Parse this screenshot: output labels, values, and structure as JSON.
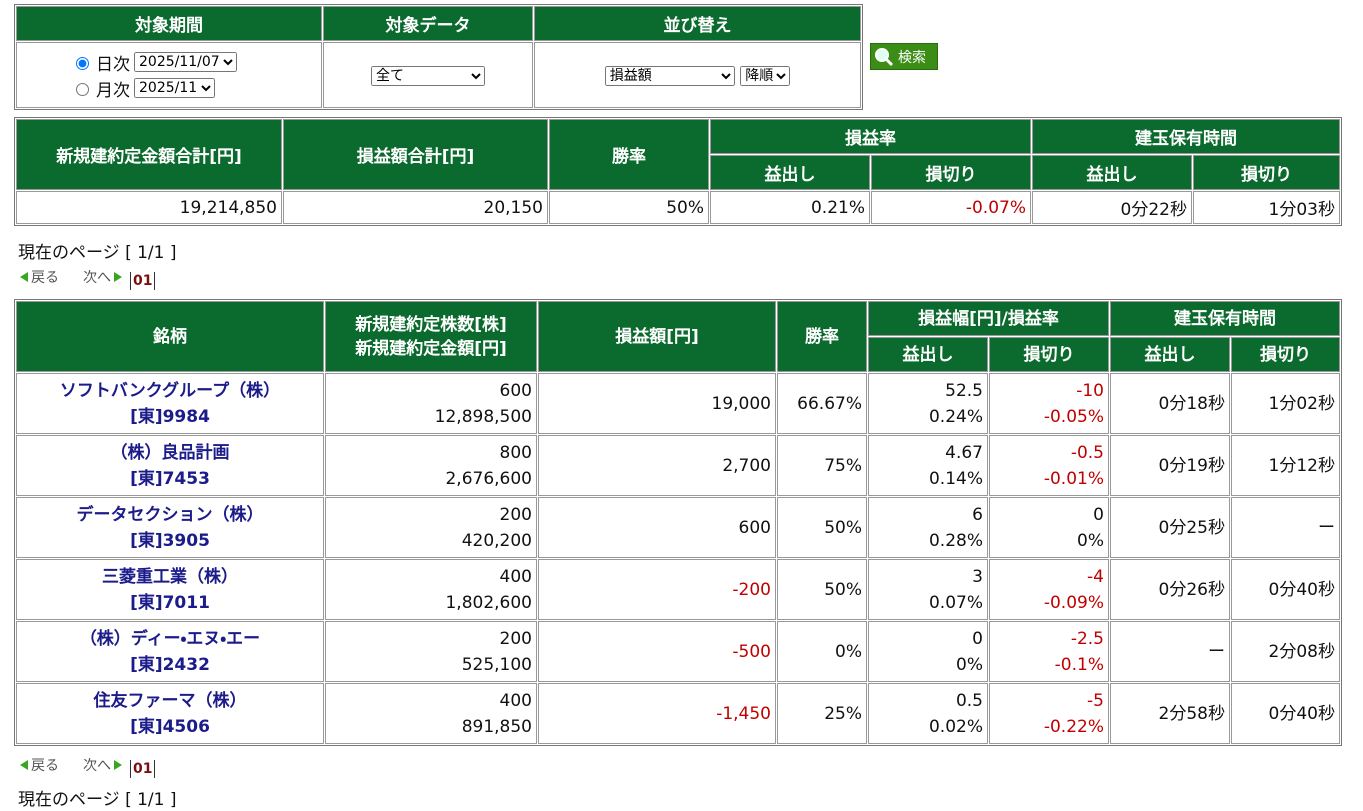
{
  "filter": {
    "headers": [
      "対象期間",
      "対象データ",
      "並び替え"
    ],
    "period_options": [
      {
        "label": "日次",
        "value": "2025/11/07",
        "checked": true
      },
      {
        "label": "月次",
        "value": "2025/11",
        "checked": false
      }
    ],
    "data_select": "全て",
    "sort_select": "損益額",
    "order_select": "降順",
    "search_button": "検索"
  },
  "summary": {
    "headers": [
      "新規建約定金額合計[円]",
      "損益額合計[円]",
      "勝率",
      "損益率",
      "建玉保有時間"
    ],
    "subheaders": [
      "益出し",
      "損切り",
      "益出し",
      "損切り"
    ],
    "values": [
      "19,214,850",
      "20,150",
      "50%",
      "0.21%",
      "-0.07%",
      "0分22秒",
      "1分03秒"
    ]
  },
  "pager_top": {
    "current": "現在のページ [ 1/1 ]",
    "prev": "戻る",
    "next": "次へ",
    "page": "01"
  },
  "table": {
    "headers": [
      "銘柄",
      "新規建約定株数[株]",
      "新規建約定金額[円]",
      "損益額[円]",
      "勝率",
      "損益幅[円]/損益率",
      "建玉保有時間"
    ],
    "subheaders": [
      "益出し",
      "損切り",
      "益出し",
      "損切り"
    ],
    "rows": [
      [
        "ソフトバンクグループ（株）",
        "[東]9984",
        "600",
        "12,898,500",
        "19,000",
        "66.67%",
        "52.5",
        "0.24%",
        "-10",
        "-0.05%",
        "0分18秒",
        "1分02秒"
      ],
      [
        "（株）良品計画",
        "[東]7453",
        "800",
        "2,676,600",
        "2,700",
        "75%",
        "4.67",
        "0.14%",
        "-0.5",
        "-0.01%",
        "0分19秒",
        "1分12秒"
      ],
      [
        "データセクション（株）",
        "[東]3905",
        "200",
        "420,200",
        "600",
        "50%",
        "6",
        "0.28%",
        "0",
        "0%",
        "0分25秒",
        "ー"
      ],
      [
        "三菱重工業（株）",
        "[東]7011",
        "400",
        "1,802,600",
        "-200",
        "50%",
        "3",
        "0.07%",
        "-4",
        "-0.09%",
        "0分26秒",
        "0分40秒"
      ],
      [
        "（株）ディー・エヌ・エー",
        "[東]2432",
        "200",
        "525,100",
        "-500",
        "0%",
        "0",
        "0%",
        "-2.5",
        "-0.1%",
        "ー",
        "2分08秒"
      ],
      [
        "住友ファーマ（株）",
        "[東]4506",
        "400",
        "891,850",
        "-1,450",
        "25%",
        "0.5",
        "0.02%",
        "-5",
        "-0.22%",
        "2分58秒",
        "0分40秒"
      ]
    ]
  },
  "pager_bottom": {
    "current": "現在のページ [ 1/1 ]",
    "prev": "戻る",
    "next": "次へ",
    "page": "01"
  }
}
